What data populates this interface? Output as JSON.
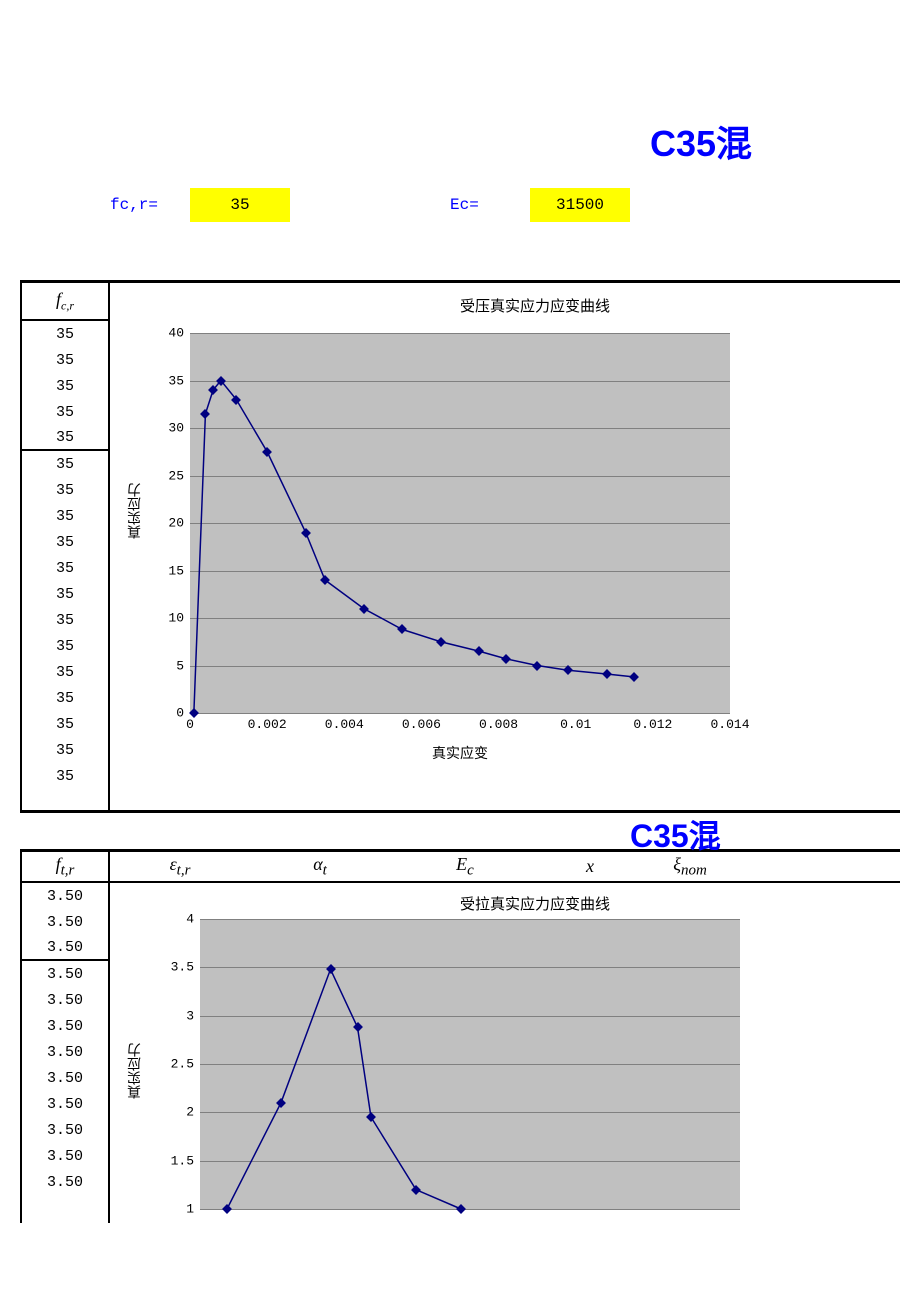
{
  "page_title": "C35混",
  "params": {
    "fc_label": "fc,r=",
    "fc_value": "35",
    "ec_label": "Ec=",
    "ec_value": "31500"
  },
  "table1": {
    "header": "f_c,r",
    "group1": [
      "35",
      "35",
      "35",
      "35",
      "35"
    ],
    "group2": [
      "35",
      "35",
      "35",
      "35",
      "35",
      "35",
      "35",
      "35",
      "35",
      "35",
      "35",
      "35",
      "35"
    ]
  },
  "chart1": {
    "title": "受压真实应力应变曲线",
    "ylabel": "真实应力",
    "xlabel": "真实应变",
    "ylim": [
      0,
      40
    ],
    "ytick_step": 5,
    "xlim": [
      0,
      0.014
    ],
    "xtick_step": 0.002,
    "background_color": "#c0c0c0",
    "line_color": "#000080",
    "marker_color": "#000080",
    "grid_color": "#808080",
    "data": [
      [
        0.0001,
        0
      ],
      [
        0.0004,
        31.5
      ],
      [
        0.0006,
        34
      ],
      [
        0.0008,
        35
      ],
      [
        0.0012,
        33
      ],
      [
        0.002,
        27.5
      ],
      [
        0.003,
        19
      ],
      [
        0.0035,
        14
      ],
      [
        0.0045,
        11
      ],
      [
        0.0055,
        8.8
      ],
      [
        0.0065,
        7.5
      ],
      [
        0.0075,
        6.5
      ],
      [
        0.0082,
        5.7
      ],
      [
        0.009,
        5
      ],
      [
        0.0098,
        4.5
      ],
      [
        0.0108,
        4.1
      ],
      [
        0.0115,
        3.8
      ]
    ]
  },
  "section2_title": "C35混",
  "table2": {
    "header": "f_t,r",
    "columns": [
      "ε_t,r",
      "α_t",
      "E_c",
      "x",
      "ξ_nom"
    ],
    "group1": [
      "3.50",
      "3.50",
      "3.50"
    ],
    "group2": [
      "3.50",
      "3.50",
      "3.50",
      "3.50",
      "3.50",
      "3.50",
      "3.50",
      "3.50",
      "3.50"
    ]
  },
  "chart2": {
    "title": "受拉真实应力应变曲线",
    "ylabel": "真实应力",
    "ylim": [
      1,
      4
    ],
    "ytick_step": 0.5,
    "background_color": "#c0c0c0",
    "line_color": "#000080",
    "marker_color": "#000080",
    "grid_color": "#808080",
    "data": [
      [
        0.3,
        1.0
      ],
      [
        0.9,
        2.1
      ],
      [
        1.45,
        3.48
      ],
      [
        1.75,
        2.88
      ],
      [
        1.9,
        1.95
      ],
      [
        2.4,
        1.2
      ],
      [
        2.9,
        1.0
      ]
    ]
  }
}
